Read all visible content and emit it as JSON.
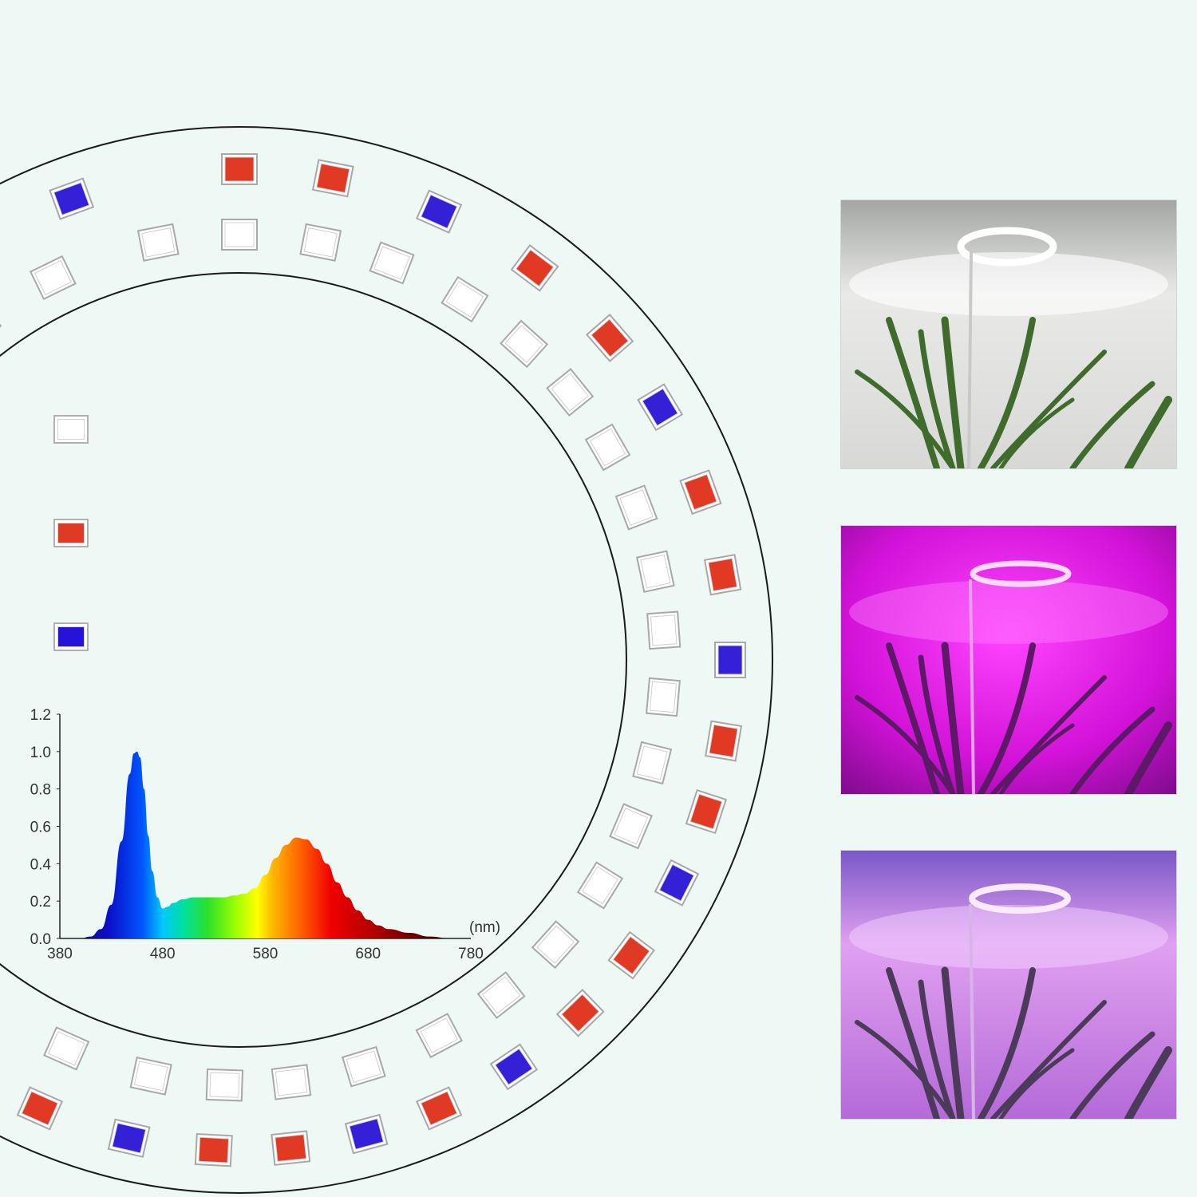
{
  "colors": {
    "background": "#eef8f5",
    "white_led": "#ffffff",
    "red_led": "#e03a24",
    "blue_led": "#3420d6",
    "ring_line": "#1a1a1a"
  },
  "legend": [
    {
      "led": "white",
      "icon": "white-led-icon"
    },
    {
      "led": "red",
      "icon": "red-led-icon"
    },
    {
      "led": "blue",
      "icon": "blue-led-icon"
    }
  ],
  "photos": [
    {
      "mode": "white",
      "icon": "plant-photo-white-light"
    },
    {
      "mode": "red-blue",
      "icon": "plant-photo-magenta-light"
    },
    {
      "mode": "mixed",
      "icon": "plant-photo-violet-light"
    }
  ],
  "chart_data": {
    "type": "area",
    "x_unit": "(nm)",
    "xlim": [
      380,
      780
    ],
    "ylim": [
      0,
      1.2
    ],
    "x_ticks": [
      "380",
      "480",
      "580",
      "680",
      "780"
    ],
    "y_ticks": [
      "0.0",
      "0.2",
      "0.4",
      "0.6",
      "0.8",
      "1.0",
      "1.2"
    ],
    "grid": false,
    "series": [
      {
        "x": [
          380,
          400,
          410,
          420,
          430,
          440,
          448,
          452,
          455,
          458,
          462,
          466,
          470,
          475,
          480,
          485,
          490,
          500,
          510,
          520,
          530,
          540,
          550,
          560,
          570,
          580,
          590,
          600,
          610,
          620,
          630,
          640,
          650,
          660,
          670,
          680,
          690,
          700,
          720,
          740,
          760,
          780
        ],
        "y": [
          0.0,
          0.0,
          0.01,
          0.05,
          0.18,
          0.52,
          0.88,
          0.99,
          1.0,
          0.97,
          0.8,
          0.55,
          0.36,
          0.22,
          0.16,
          0.17,
          0.19,
          0.21,
          0.22,
          0.22,
          0.22,
          0.22,
          0.23,
          0.24,
          0.27,
          0.34,
          0.43,
          0.5,
          0.54,
          0.53,
          0.48,
          0.4,
          0.3,
          0.22,
          0.15,
          0.1,
          0.07,
          0.05,
          0.03,
          0.01,
          0.0,
          0.0
        ]
      }
    ]
  }
}
